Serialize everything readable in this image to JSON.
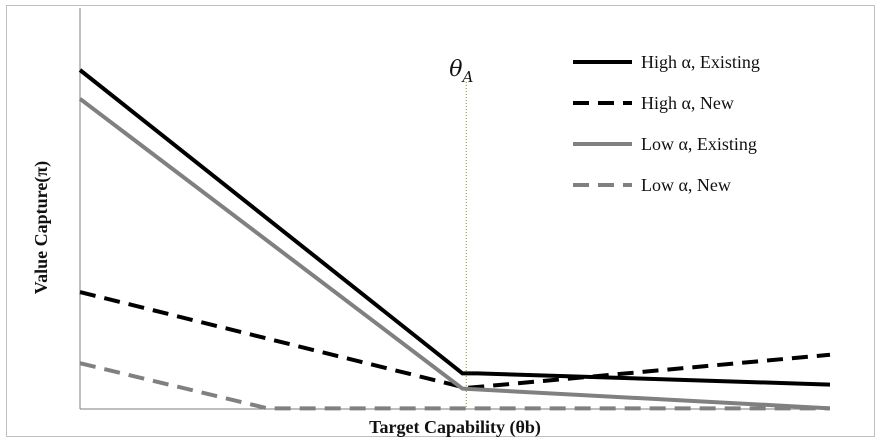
{
  "chart_data": {
    "type": "line",
    "title": "",
    "xlabel": "Target Capability (θb)",
    "ylabel": "Value Capture(π)",
    "xlim": [
      0,
      10
    ],
    "ylim": [
      0,
      10
    ],
    "grid": false,
    "legend_position": "top-right",
    "annotations": [
      {
        "label": "θ",
        "subscript": "A",
        "x": 5.15
      }
    ],
    "series": [
      {
        "name": "High α, Existing",
        "color": "#000000",
        "dash": "solid",
        "x": [
          0,
          5.1,
          5.3,
          10
        ],
        "y": [
          10.0,
          1.05,
          1.05,
          0.72
        ]
      },
      {
        "name": "High α, New",
        "color": "#000000",
        "dash": "dashed",
        "x": [
          0,
          5.15,
          10
        ],
        "y": [
          3.45,
          0.62,
          1.6
        ]
      },
      {
        "name": "Low α, Existing",
        "color": "#808080",
        "dash": "solid",
        "x": [
          0,
          5.1,
          10
        ],
        "y": [
          9.15,
          0.6,
          0.02
        ]
      },
      {
        "name": "Low α, New",
        "color": "#808080",
        "dash": "dashed",
        "x": [
          0,
          2.5,
          10
        ],
        "y": [
          1.35,
          0.02,
          0.02
        ]
      }
    ]
  }
}
